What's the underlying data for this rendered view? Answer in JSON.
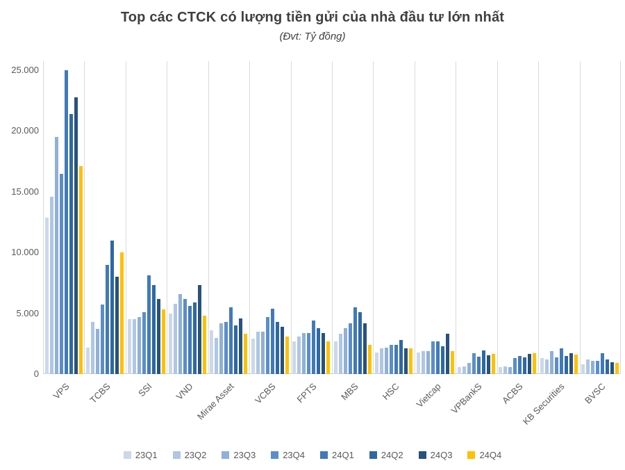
{
  "chart_data": {
    "type": "bar",
    "title": "Top các CTCK có lượng tiền gửi của nhà đầu tư lớn nhất",
    "subtitle": "(Đvt: Tỷ đồng)",
    "unit": "Tỷ đồng",
    "categories": [
      "VPS",
      "TCBS",
      "SSI",
      "VND",
      "Mirae Asset",
      "VCBS",
      "FPTS",
      "MBS",
      "HSC",
      "Vietcap",
      "VPBankS",
      "ACBS",
      "KB Securities",
      "BVSC"
    ],
    "series": [
      {
        "name": "23Q1",
        "color": "#ccd8ea",
        "values": [
          12900,
          2200,
          4500,
          5000,
          3600,
          2900,
          2700,
          2700,
          1800,
          1800,
          550,
          600,
          1300,
          800
        ]
      },
      {
        "name": "23Q2",
        "color": "#afc6e4",
        "values": [
          14600,
          4300,
          4500,
          5800,
          3000,
          3500,
          3100,
          3300,
          2100,
          1900,
          650,
          650,
          1200,
          1200
        ]
      },
      {
        "name": "23Q3",
        "color": "#8fb0d8",
        "values": [
          19500,
          3700,
          4700,
          6600,
          4200,
          3500,
          3400,
          3800,
          2200,
          1900,
          900,
          550,
          1900,
          1100
        ]
      },
      {
        "name": "23Q4",
        "color": "#5b8dc9",
        "values": [
          16500,
          5700,
          5100,
          6200,
          4300,
          4700,
          3400,
          4200,
          2400,
          2700,
          1700,
          1300,
          1400,
          1100
        ]
      },
      {
        "name": "24Q1",
        "color": "#417ab8",
        "values": [
          25000,
          9000,
          8100,
          5600,
          5500,
          5400,
          4400,
          5500,
          2400,
          2700,
          1450,
          1500,
          2100,
          1700
        ]
      },
      {
        "name": "24Q2",
        "color": "#2f68a3",
        "values": [
          21400,
          11000,
          7300,
          5900,
          4000,
          4300,
          3800,
          5100,
          2800,
          2300,
          1950,
          1400,
          1500,
          1200
        ]
      },
      {
        "name": "24Q3",
        "color": "#27527c",
        "values": [
          22800,
          8000,
          6200,
          7300,
          4600,
          3900,
          3400,
          4200,
          2100,
          3300,
          1550,
          1650,
          1700,
          1000
        ]
      },
      {
        "name": "24Q4",
        "color": "#ffc000",
        "values": [
          17100,
          10000,
          5300,
          4800,
          3300,
          3100,
          2700,
          2400,
          2100,
          1900,
          1650,
          1700,
          1600,
          900
        ]
      }
    ],
    "y_axis": {
      "min": 0,
      "max": 25000,
      "tick_step": 5000,
      "tick_values": [
        0,
        5000,
        10000,
        15000,
        20000,
        25000
      ],
      "tick_labels": [
        "0",
        "5.000",
        "10.000",
        "15.000",
        "20.000",
        "25.000"
      ]
    },
    "legend_position": "bottom",
    "gridlines": "vertical-category-separators"
  },
  "style": {
    "background": "#ffffff",
    "gridline_color": "#d9d9d9",
    "axis_text_color": "#595959",
    "title_color": "#3f3f3f"
  }
}
